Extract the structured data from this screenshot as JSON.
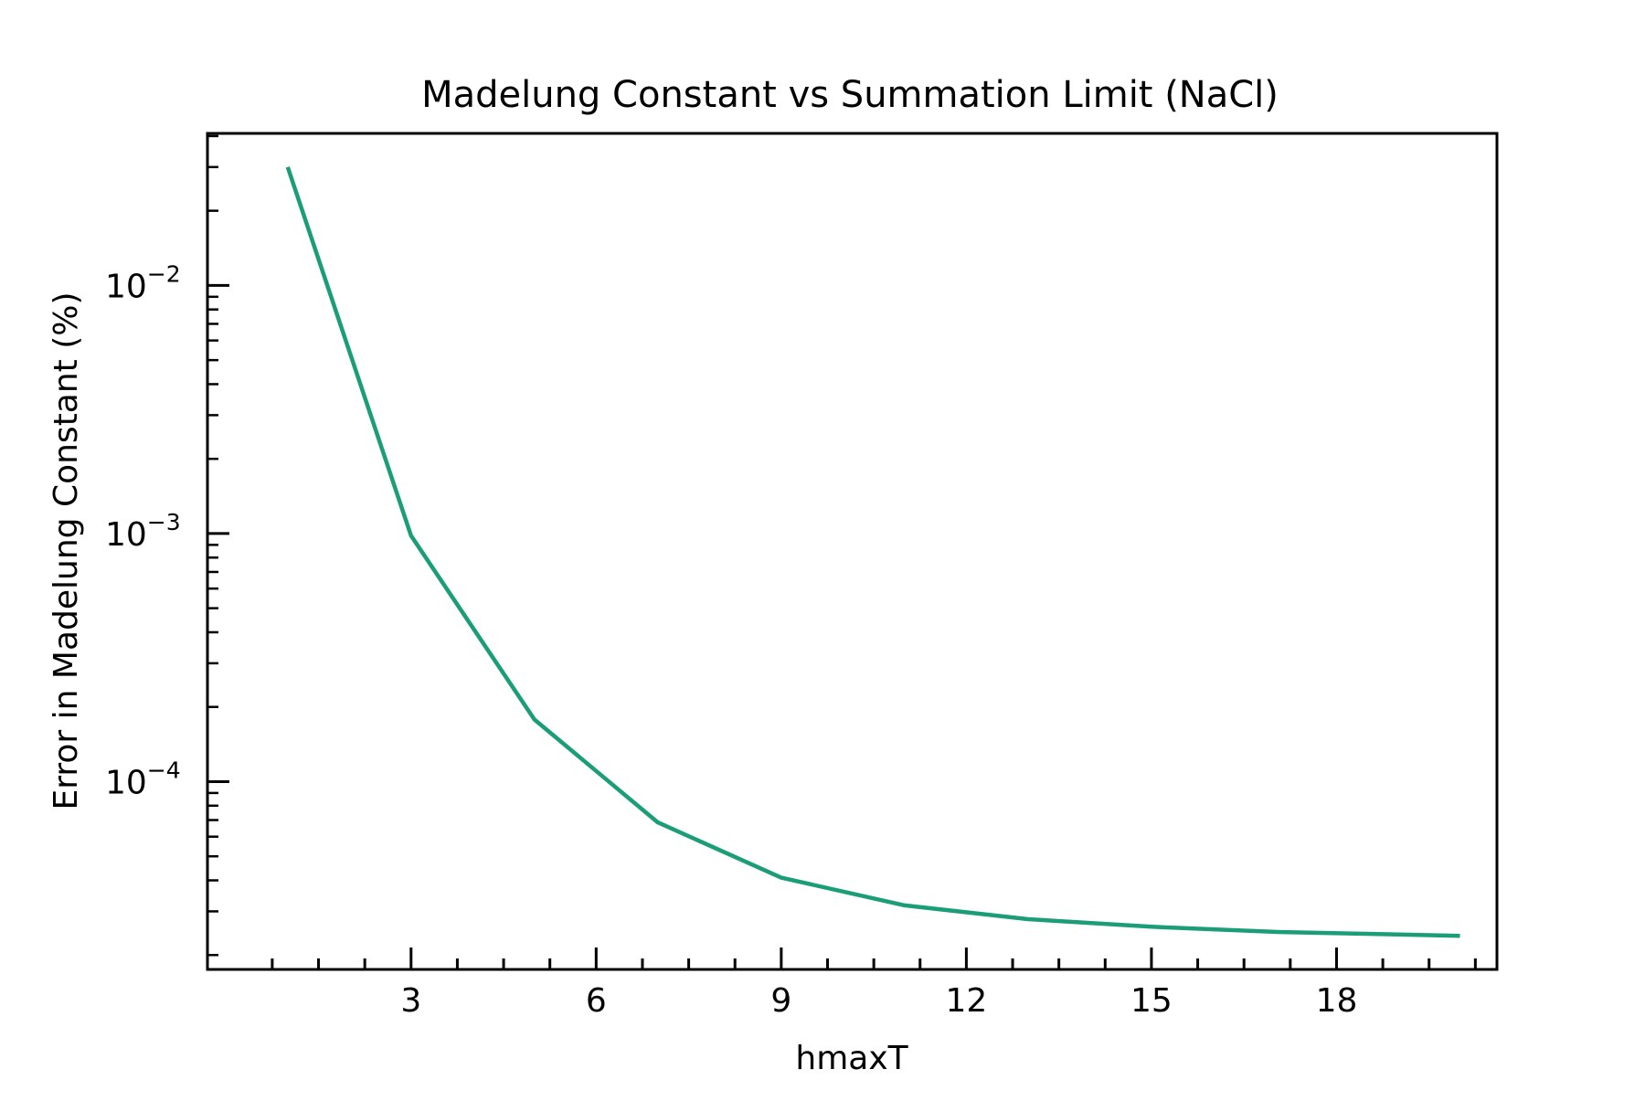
{
  "chart_data": {
    "type": "line",
    "title": "Madelung Constant vs Summation Limit (NaCl)",
    "xlabel": "hmaxT",
    "ylabel": "Error in Madelung Constant (%)",
    "yscale": "log",
    "xlim": [
      -0.3,
      20.6
    ],
    "ylim": [
      1.75e-05,
      0.041
    ],
    "x_ticks": [
      3,
      6,
      9,
      12,
      15,
      18
    ],
    "x_minor_step": 0.75,
    "y_ticks": [
      {
        "base": "10",
        "exp": "−4",
        "value": 0.0001
      },
      {
        "base": "10",
        "exp": "−3",
        "value": 0.001
      },
      {
        "base": "10",
        "exp": "−2",
        "value": 0.01
      }
    ],
    "grid": false,
    "series": [
      {
        "color": "#1b9e77",
        "x": [
          1,
          3,
          5,
          7,
          9,
          11,
          13,
          15,
          17,
          20
        ],
        "y": [
          0.03,
          0.00098,
          0.000178,
          6.85e-05,
          4.1e-05,
          3.17e-05,
          2.79e-05,
          2.6e-05,
          2.48e-05,
          2.39e-05
        ]
      }
    ]
  }
}
